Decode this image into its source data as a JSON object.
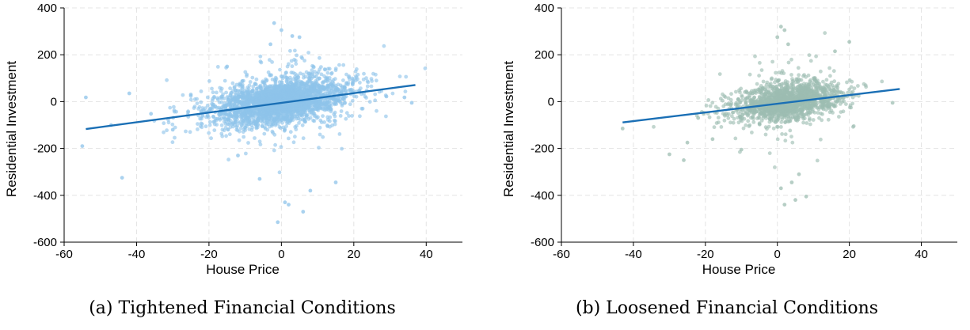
{
  "chart_data": [
    {
      "type": "scatter",
      "caption": "(a) Tightened Financial Conditions",
      "xlabel": "House Price",
      "ylabel": "Residential Investment",
      "xlim": [
        -60,
        50
      ],
      "ylim": [
        -600,
        400
      ],
      "xticks": [
        -60,
        -40,
        -20,
        0,
        20,
        40
      ],
      "yticks": [
        -600,
        -400,
        -200,
        0,
        200,
        400
      ],
      "grid": true,
      "point_color": "#8ec3ea",
      "line_color": "#1a6fb5",
      "fit_line": {
        "x": [
          -54,
          37
        ],
        "y": [
          -117,
          71
        ]
      },
      "cloud": {
        "n": 2600,
        "x_center": 0,
        "y_center": 0,
        "x_sd": 9,
        "y_sd": 45,
        "slope": 2.07
      },
      "outliers": [
        [
          -54,
          18
        ],
        [
          -55,
          -190
        ],
        [
          -47,
          -100
        ],
        [
          -44,
          -325
        ],
        [
          -42,
          35
        ],
        [
          -36,
          -52
        ],
        [
          -30,
          -120
        ],
        [
          -25,
          30
        ],
        [
          -2,
          335
        ],
        [
          0,
          305
        ],
        [
          3,
          280
        ],
        [
          5,
          275
        ],
        [
          -3,
          245
        ],
        [
          -1,
          -515
        ],
        [
          6,
          -470
        ],
        [
          2,
          -440
        ],
        [
          1,
          -430
        ],
        [
          -6,
          -330
        ],
        [
          8,
          -380
        ],
        [
          36,
          -5
        ],
        [
          34,
          18
        ],
        [
          29,
          22
        ],
        [
          15,
          -345
        ],
        [
          -12,
          -230
        ],
        [
          -15,
          150
        ]
      ]
    },
    {
      "type": "scatter",
      "caption": "(b) Loosened Financial Conditions",
      "xlabel": "House Price",
      "ylabel": "Residential Investment",
      "xlim": [
        -60,
        50
      ],
      "ylim": [
        -600,
        400
      ],
      "xticks": [
        -60,
        -40,
        -20,
        0,
        20,
        40
      ],
      "yticks": [
        -600,
        -400,
        -200,
        0,
        200,
        400
      ],
      "grid": true,
      "point_color": "#9dbdb2",
      "line_color": "#1a6fb5",
      "fit_line": {
        "x": [
          -43,
          34
        ],
        "y": [
          -89,
          54
        ]
      },
      "cloud": {
        "n": 1600,
        "x_center": 3,
        "y_center": 0,
        "x_sd": 7,
        "y_sd": 38,
        "slope": 1.85
      },
      "outliers": [
        [
          -43,
          -115
        ],
        [
          -30,
          -225
        ],
        [
          -26,
          -250
        ],
        [
          -25,
          -175
        ],
        [
          -22,
          -70
        ],
        [
          -18,
          -160
        ],
        [
          -10,
          -205
        ],
        [
          1,
          320
        ],
        [
          2,
          305
        ],
        [
          0,
          275
        ],
        [
          3,
          245
        ],
        [
          20,
          255
        ],
        [
          16,
          215
        ],
        [
          2,
          -440
        ],
        [
          5,
          -420
        ],
        [
          8,
          -405
        ],
        [
          1,
          -370
        ],
        [
          4,
          -345
        ],
        [
          6,
          -310
        ],
        [
          32,
          -5
        ]
      ]
    }
  ]
}
